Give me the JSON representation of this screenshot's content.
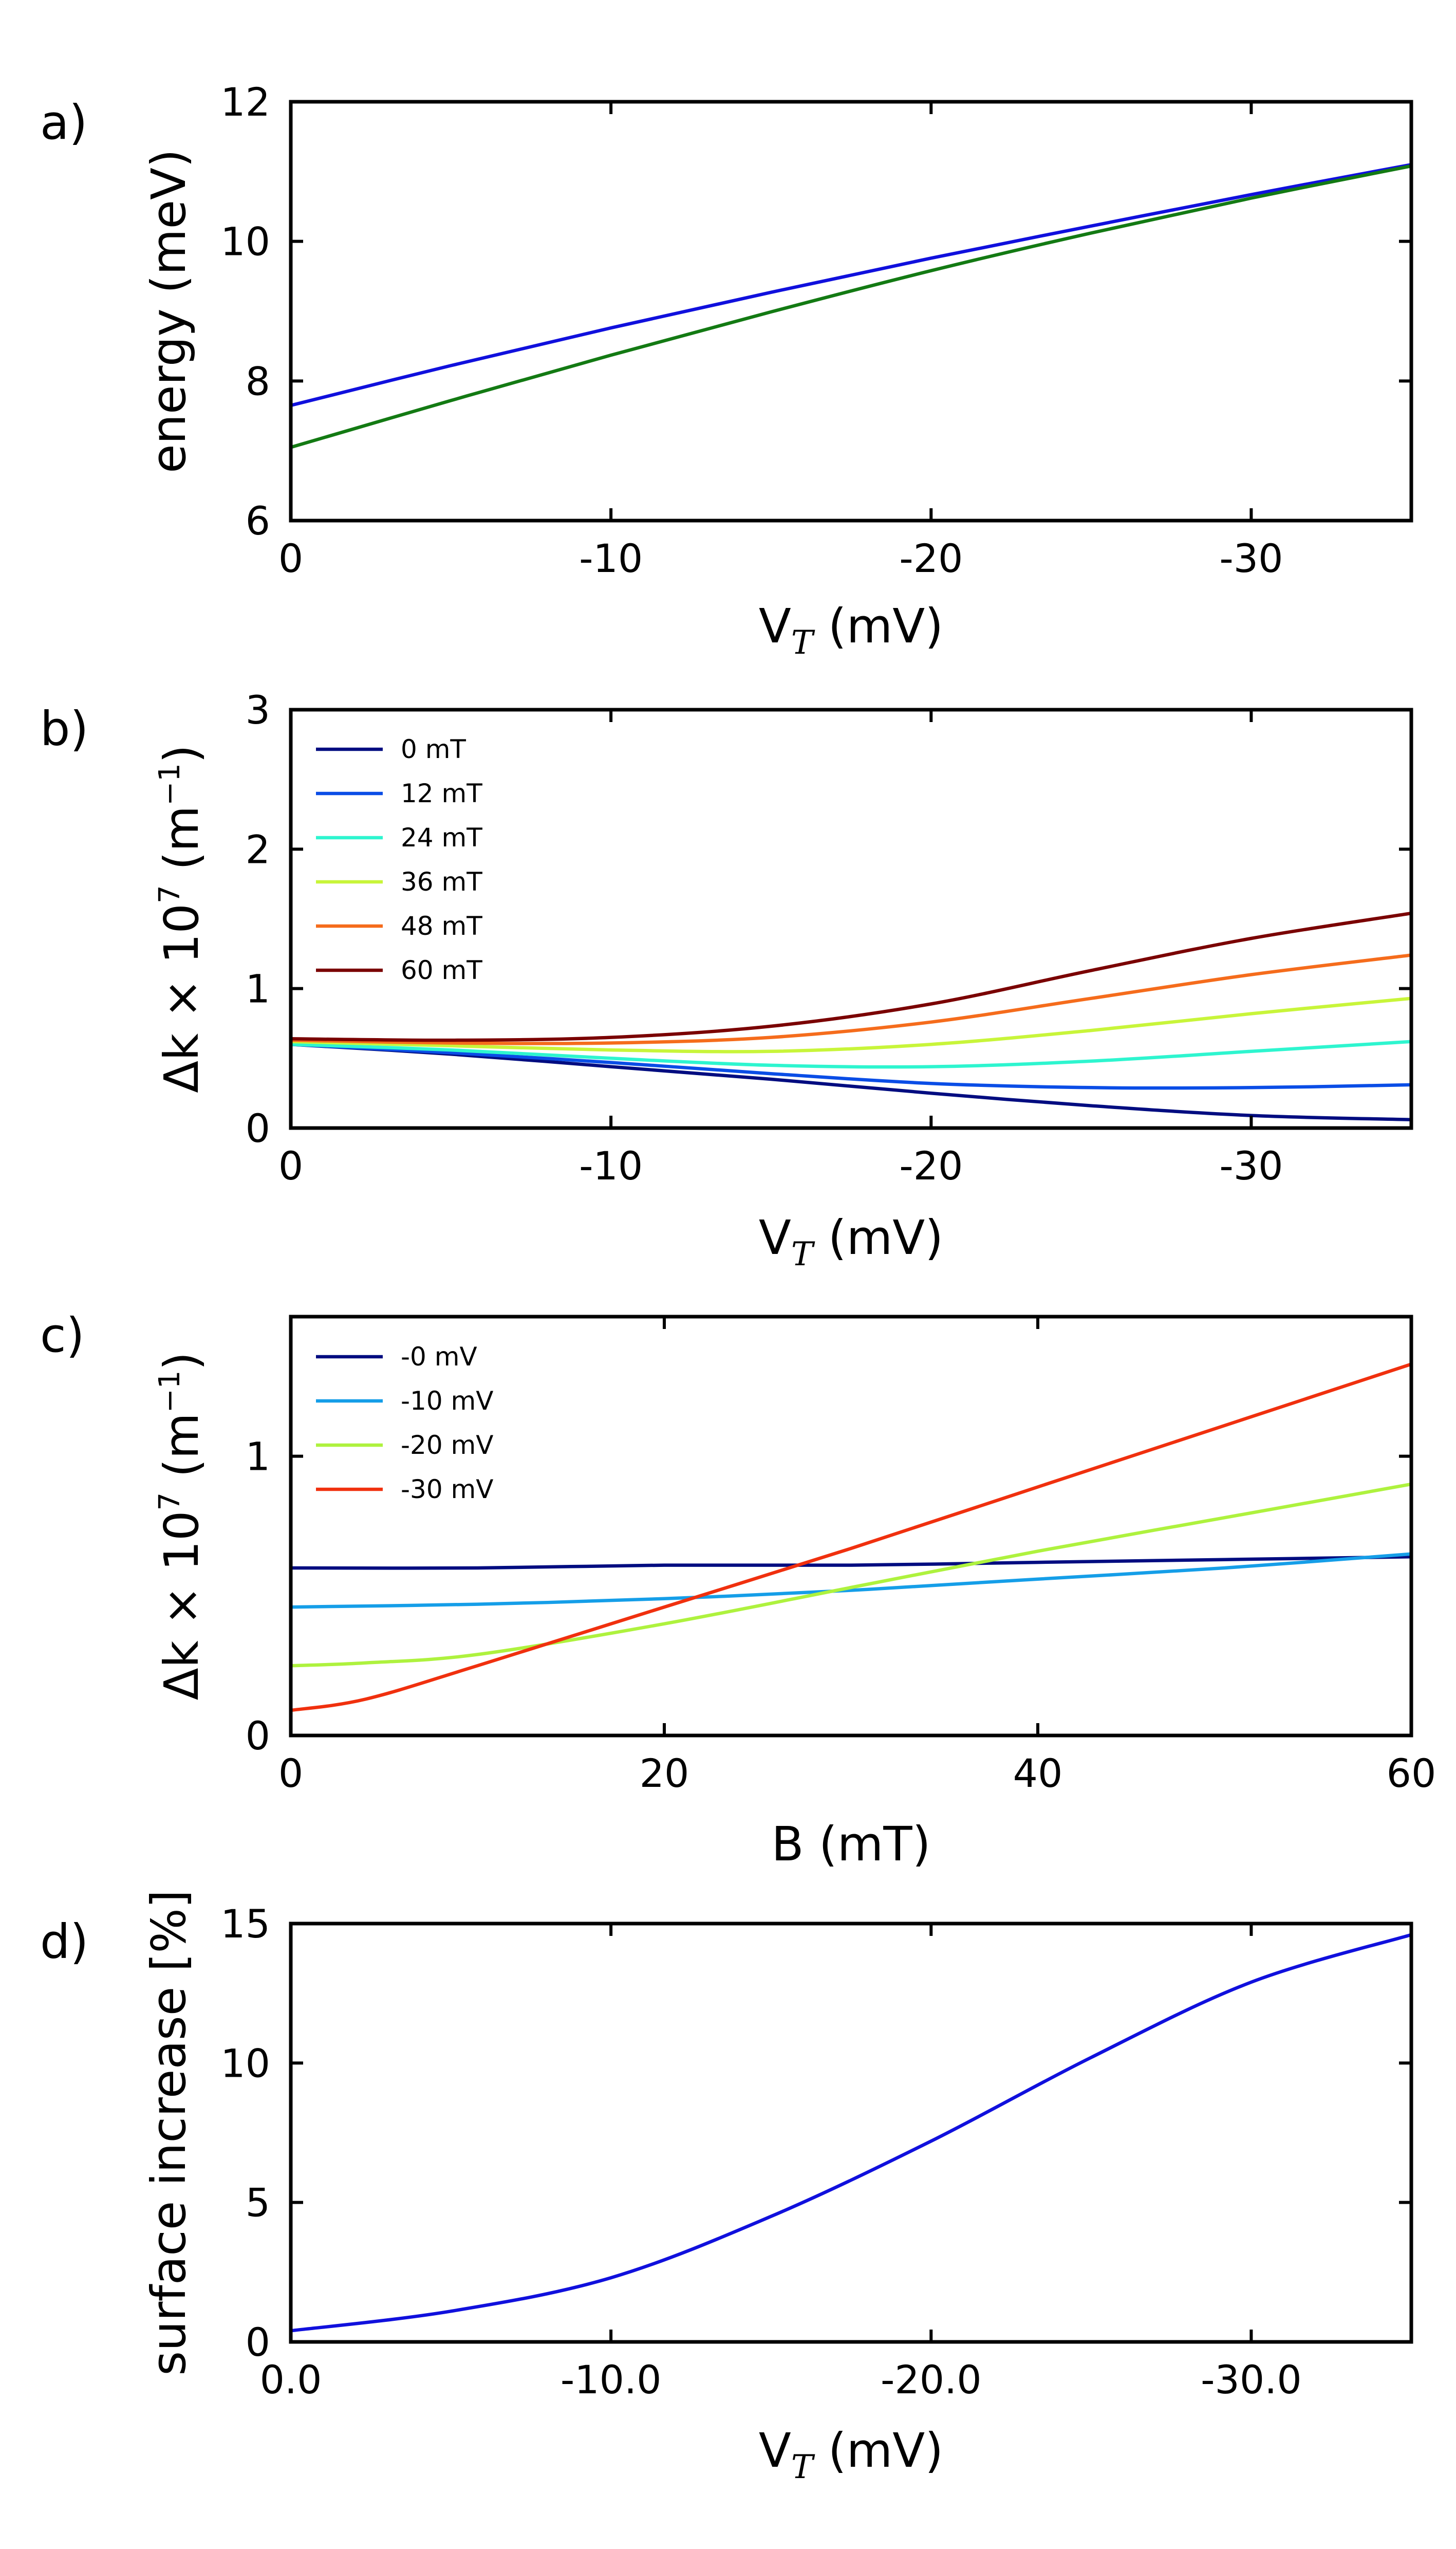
{
  "chart_data": [
    {
      "panel": "a)",
      "type": "line",
      "xlabel_main": "V",
      "xlabel_sub": "T",
      "xlabel_unit": "(mV)",
      "ylabel": "energy (meV)",
      "xlim": [
        0,
        -35
      ],
      "ylim": [
        6,
        12
      ],
      "xticks": [
        0,
        -10,
        -20,
        -30
      ],
      "xtick_labels": [
        "0",
        "-10",
        "-20",
        "-30"
      ],
      "yticks": [
        6,
        8,
        10,
        12
      ],
      "ytick_labels": [
        "6",
        "8",
        "10",
        "12"
      ],
      "legend": null,
      "series": [
        {
          "name": "blue",
          "color": "#1010dd",
          "x": [
            0,
            -5,
            -10,
            -15,
            -20,
            -25,
            -30,
            -35
          ],
          "y": [
            7.65,
            8.22,
            8.76,
            9.27,
            9.76,
            10.22,
            10.67,
            11.1
          ]
        },
        {
          "name": "green",
          "color": "#137a13",
          "x": [
            0,
            -5,
            -10,
            -15,
            -20,
            -25,
            -30,
            -35
          ],
          "y": [
            7.05,
            7.72,
            8.37,
            8.99,
            9.58,
            10.12,
            10.62,
            11.08
          ]
        }
      ]
    },
    {
      "panel": "b)",
      "type": "line",
      "xlabel_main": "V",
      "xlabel_sub": "T",
      "xlabel_unit": "(mV)",
      "ylabel_main": "Δk × 10",
      "ylabel_sup": "7",
      "ylabel_unit": " (m",
      "ylabel_unit_sup": "−1",
      "ylabel_close": ")",
      "xlim": [
        0,
        -35
      ],
      "ylim": [
        0,
        3
      ],
      "xticks": [
        0,
        -10,
        -20,
        -30
      ],
      "xtick_labels": [
        "0",
        "-10",
        "-20",
        "-30"
      ],
      "yticks": [
        0,
        1,
        2,
        3
      ],
      "ytick_labels": [
        "0",
        "1",
        "2",
        "3"
      ],
      "legend": "top-left",
      "series": [
        {
          "name": "0 mT",
          "color": "#000c80",
          "x": [
            0,
            -5,
            -10,
            -15,
            -20,
            -25,
            -30,
            -35
          ],
          "y": [
            0.6,
            0.53,
            0.44,
            0.35,
            0.25,
            0.16,
            0.09,
            0.06
          ]
        },
        {
          "name": "12 mT",
          "color": "#0a4de6",
          "x": [
            0,
            -5,
            -10,
            -15,
            -20,
            -25,
            -30,
            -35
          ],
          "y": [
            0.6,
            0.54,
            0.47,
            0.39,
            0.32,
            0.29,
            0.29,
            0.31
          ]
        },
        {
          "name": "24 mT",
          "color": "#2ef5cf",
          "x": [
            0,
            -5,
            -10,
            -15,
            -20,
            -25,
            -30,
            -35
          ],
          "y": [
            0.6,
            0.56,
            0.5,
            0.45,
            0.44,
            0.48,
            0.55,
            0.62
          ]
        },
        {
          "name": "36 mT",
          "color": "#c8f53a",
          "x": [
            0,
            -5,
            -10,
            -15,
            -20,
            -25,
            -30,
            -35
          ],
          "y": [
            0.62,
            0.59,
            0.56,
            0.55,
            0.6,
            0.7,
            0.82,
            0.93
          ]
        },
        {
          "name": "48 mT",
          "color": "#f56c1c",
          "x": [
            0,
            -5,
            -10,
            -15,
            -20,
            -25,
            -30,
            -35
          ],
          "y": [
            0.63,
            0.61,
            0.61,
            0.65,
            0.76,
            0.93,
            1.1,
            1.24
          ]
        },
        {
          "name": "60 mT",
          "color": "#7a0000",
          "x": [
            0,
            -5,
            -10,
            -15,
            -20,
            -25,
            -30,
            -35
          ],
          "y": [
            0.64,
            0.63,
            0.65,
            0.73,
            0.89,
            1.13,
            1.36,
            1.54
          ]
        }
      ]
    },
    {
      "panel": "c)",
      "type": "line",
      "xlabel": "B (mT)",
      "ylabel_main": "Δk × 10",
      "ylabel_sup": "7",
      "ylabel_unit": " (m",
      "ylabel_unit_sup": "−1",
      "ylabel_close": ")",
      "xlim": [
        0,
        60
      ],
      "ylim": [
        0,
        1.5
      ],
      "xticks": [
        0,
        20,
        40,
        60
      ],
      "xtick_labels": [
        "0",
        "20",
        "40",
        "60"
      ],
      "yticks": [
        0,
        1
      ],
      "ytick_labels": [
        "0",
        "1"
      ],
      "legend": "top-left",
      "series": [
        {
          "name": "-0 mV",
          "color": "#000c80",
          "x": [
            0,
            10,
            20,
            30,
            40,
            50,
            60
          ],
          "y": [
            0.6,
            0.6,
            0.61,
            0.61,
            0.62,
            0.63,
            0.64
          ]
        },
        {
          "name": "-10 mV",
          "color": "#159ee8",
          "x": [
            0,
            10,
            20,
            30,
            40,
            50,
            60
          ],
          "y": [
            0.46,
            0.47,
            0.49,
            0.52,
            0.56,
            0.6,
            0.65
          ]
        },
        {
          "name": "-20 mV",
          "color": "#aef23e",
          "x": [
            0,
            4,
            10,
            20,
            30,
            40,
            50,
            60
          ],
          "y": [
            0.25,
            0.26,
            0.29,
            0.4,
            0.53,
            0.66,
            0.78,
            0.9
          ]
        },
        {
          "name": "-30 mV",
          "color": "#f0300e",
          "x": [
            0,
            4,
            10,
            20,
            30,
            40,
            50,
            60
          ],
          "y": [
            0.09,
            0.13,
            0.25,
            0.46,
            0.67,
            0.89,
            1.11,
            1.33
          ]
        }
      ]
    },
    {
      "panel": "d)",
      "type": "line",
      "xlabel_main": "V",
      "xlabel_sub": "T",
      "xlabel_unit": "(mV)",
      "ylabel": "surface increase [%]",
      "xlim": [
        0,
        -35
      ],
      "ylim": [
        0,
        15
      ],
      "xticks": [
        0,
        -10,
        -20,
        -30
      ],
      "xtick_labels": [
        "0.0",
        "-10.0",
        "-20.0",
        "-30.0"
      ],
      "yticks": [
        0,
        5,
        10,
        15
      ],
      "ytick_labels": [
        "0",
        "5",
        "10",
        "15"
      ],
      "legend": null,
      "series": [
        {
          "name": "blue",
          "color": "#1010dd",
          "x": [
            0,
            -5,
            -10,
            -15,
            -20,
            -25,
            -30,
            -35
          ],
          "y": [
            0.4,
            1.1,
            2.3,
            4.5,
            7.2,
            10.2,
            12.9,
            14.6
          ]
        }
      ]
    }
  ]
}
